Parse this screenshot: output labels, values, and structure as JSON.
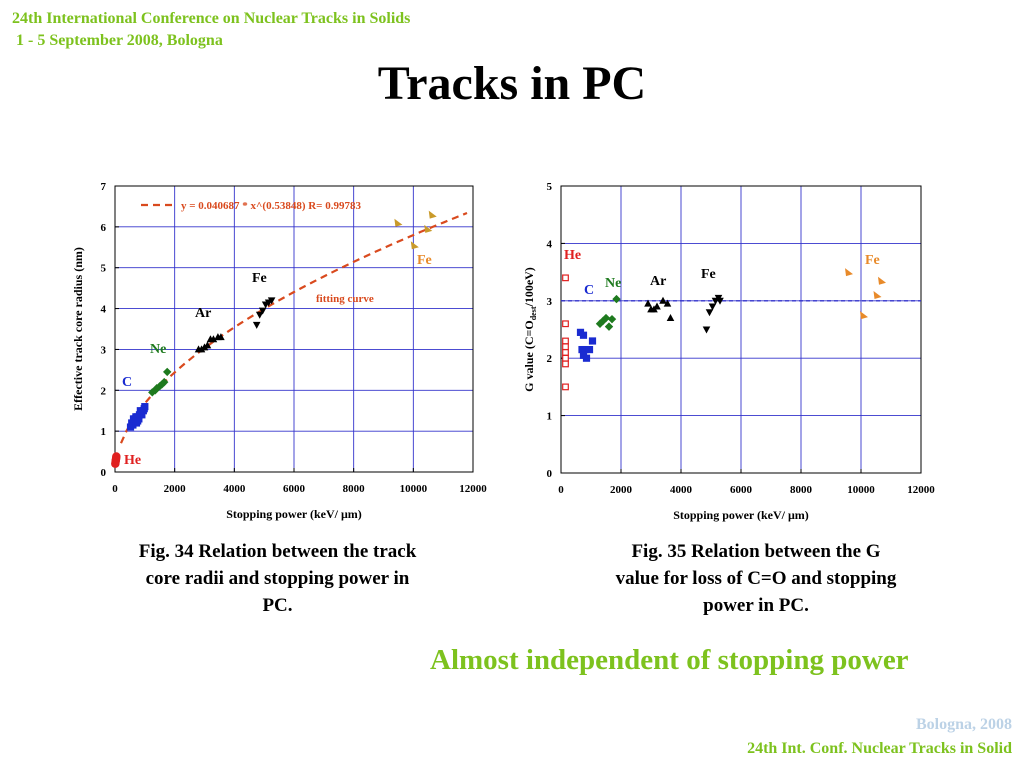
{
  "header": {
    "line1": "24th International Conference on Nuclear Tracks in Solids",
    "line2": " 1 - 5 September 2008, Bologna"
  },
  "slide_title": "Tracks in PC",
  "captions": {
    "left": [
      "Fig. 34 Relation between the track",
      "core radii and stopping power in",
      "PC."
    ],
    "right": [
      "Fig. 35 Relation between the G",
      "value for loss of C=O and stopping",
      "power in PC."
    ]
  },
  "highlight": "Almost independent of stopping power",
  "footer": {
    "line1": "Bologna,  2008",
    "line2": "24th Int. Conf. Nuclear Tracks in Solid"
  },
  "colors": {
    "accent_green": "#7dc21e",
    "grid": "#3333cc",
    "He": "#e02020",
    "C": "#1a2bd1",
    "Ne": "#1e7a1e",
    "Ar": "#000000",
    "Fe": "#000000",
    "Fe_orange": "#e88a2a",
    "fit": "#d94a1e"
  },
  "chart_data": [
    {
      "type": "scatter",
      "ylabel": "Effective track core radius (nm)",
      "xlabel": "Stopping power (keV/ μm)",
      "xlim": [
        0,
        12000
      ],
      "ylim": [
        0,
        7
      ],
      "xticks": [
        0,
        2000,
        4000,
        6000,
        8000,
        10000,
        12000
      ],
      "yticks": [
        0,
        1,
        2,
        3,
        4,
        5,
        6,
        7
      ],
      "grid": true,
      "fit": {
        "label": "y = 0.040687 * x^(0.53848)   R= 0.99783",
        "a": 0.040687,
        "b": 0.53848,
        "x_range": [
          200,
          11800
        ],
        "annotation": "fitting curve"
      },
      "series": [
        {
          "name": "He",
          "label_color": "#e02020",
          "marker": "circle",
          "color": "#e02020",
          "points": [
            [
              10,
              0.2
            ],
            [
              20,
              0.25
            ],
            [
              30,
              0.3
            ],
            [
              40,
              0.35
            ],
            [
              25,
              0.28
            ],
            [
              15,
              0.22
            ],
            [
              35,
              0.32
            ],
            [
              45,
              0.38
            ]
          ]
        },
        {
          "name": "C",
          "label_color": "#1a2bd1",
          "marker": "square",
          "color": "#1a2bd1",
          "points": [
            [
              520,
              1.1
            ],
            [
              560,
              1.2
            ],
            [
              600,
              1.15
            ],
            [
              650,
              1.25
            ],
            [
              680,
              1.3
            ],
            [
              720,
              1.2
            ],
            [
              750,
              1.35
            ],
            [
              800,
              1.3
            ],
            [
              820,
              1.4
            ],
            [
              870,
              1.45
            ],
            [
              900,
              1.4
            ],
            [
              950,
              1.5
            ],
            [
              980,
              1.55
            ],
            [
              1000,
              1.6
            ],
            [
              620,
              1.3
            ],
            [
              700,
              1.35
            ],
            [
              760,
              1.25
            ],
            [
              850,
              1.5
            ]
          ]
        },
        {
          "name": "Ne",
          "label_color": "#1e7a1e",
          "marker": "diamond",
          "color": "#1e7a1e",
          "points": [
            [
              1250,
              1.95
            ],
            [
              1350,
              2.0
            ],
            [
              1400,
              2.05
            ],
            [
              1500,
              2.1
            ],
            [
              1580,
              2.15
            ],
            [
              1650,
              2.2
            ],
            [
              1750,
              2.45
            ]
          ]
        },
        {
          "name": "Ar",
          "label_color": "#000000",
          "marker": "triangle-up",
          "color": "#000000",
          "points": [
            [
              2800,
              3.0
            ],
            [
              2900,
              3.0
            ],
            [
              3000,
              3.05
            ],
            [
              3100,
              3.1
            ],
            [
              3200,
              3.25
            ],
            [
              3300,
              3.25
            ],
            [
              3450,
              3.3
            ],
            [
              3550,
              3.3
            ]
          ]
        },
        {
          "name": "Fe",
          "label_color": "#000000",
          "marker": "triangle-down",
          "color": "#000000",
          "points": [
            [
              4750,
              3.6
            ],
            [
              4850,
              3.85
            ],
            [
              4950,
              3.95
            ],
            [
              5050,
              4.1
            ],
            [
              5150,
              4.15
            ],
            [
              5250,
              4.2
            ]
          ]
        },
        {
          "name": "Fe",
          "label_color": "#e88a2a",
          "marker": "triangle-orange",
          "color": "#c99a2a",
          "points": [
            [
              9500,
              6.1
            ],
            [
              10500,
              5.95
            ],
            [
              10650,
              6.3
            ],
            [
              10050,
              5.55
            ]
          ]
        }
      ]
    },
    {
      "type": "scatter",
      "ylabel": "G value (C=O",
      "ylabel_sub": "dest",
      "ylabel_tail": "/100eV)",
      "xlabel": "Stopping power (keV/ μm)",
      "xlim": [
        0,
        12000
      ],
      "ylim": [
        0,
        5
      ],
      "xticks": [
        0,
        2000,
        4000,
        6000,
        8000,
        10000,
        12000
      ],
      "yticks": [
        0,
        1,
        2,
        3,
        4,
        5
      ],
      "grid": true,
      "reference_line": 3,
      "series": [
        {
          "name": "He",
          "label_color": "#e02020",
          "marker": "open-square",
          "color": "#e02020",
          "points": [
            [
              150,
              3.4
            ],
            [
              150,
              2.6
            ],
            [
              150,
              2.3
            ],
            [
              150,
              2.2
            ],
            [
              150,
              2.1
            ],
            [
              150,
              2.0
            ],
            [
              150,
              1.9
            ],
            [
              150,
              1.5
            ]
          ]
        },
        {
          "name": "C",
          "label_color": "#1a2bd1",
          "marker": "square",
          "color": "#1a2bd1",
          "points": [
            [
              650,
              2.45
            ],
            [
              750,
              2.4
            ],
            [
              700,
              2.15
            ],
            [
              800,
              2.15
            ],
            [
              850,
              2.0
            ],
            [
              950,
              2.15
            ],
            [
              1050,
              2.3
            ],
            [
              750,
              2.05
            ]
          ]
        },
        {
          "name": "Ne",
          "label_color": "#1e7a1e",
          "marker": "diamond",
          "color": "#1e7a1e",
          "points": [
            [
              1300,
              2.6
            ],
            [
              1400,
              2.65
            ],
            [
              1500,
              2.7
            ],
            [
              1600,
              2.55
            ],
            [
              1700,
              2.68
            ],
            [
              1850,
              3.03
            ]
          ]
        },
        {
          "name": "Ar",
          "label_color": "#000000",
          "marker": "triangle-up",
          "color": "#000000",
          "points": [
            [
              2900,
              2.95
            ],
            [
              3000,
              2.85
            ],
            [
              3100,
              2.85
            ],
            [
              3200,
              2.9
            ],
            [
              3400,
              3.0
            ],
            [
              3550,
              2.95
            ],
            [
              3650,
              2.7
            ]
          ]
        },
        {
          "name": "Fe",
          "label_color": "#000000",
          "marker": "triangle-down",
          "color": "#000000",
          "points": [
            [
              4850,
              2.5
            ],
            [
              4950,
              2.8
            ],
            [
              5050,
              2.9
            ],
            [
              5150,
              3.0
            ],
            [
              5250,
              3.05
            ],
            [
              5300,
              3.0
            ]
          ]
        },
        {
          "name": "Fe",
          "label_color": "#e88a2a",
          "marker": "triangle-orange",
          "color": "#e88a2a",
          "points": [
            [
              9600,
              3.5
            ],
            [
              10100,
              2.75
            ],
            [
              10550,
              3.1
            ],
            [
              10700,
              3.35
            ]
          ]
        }
      ]
    }
  ]
}
